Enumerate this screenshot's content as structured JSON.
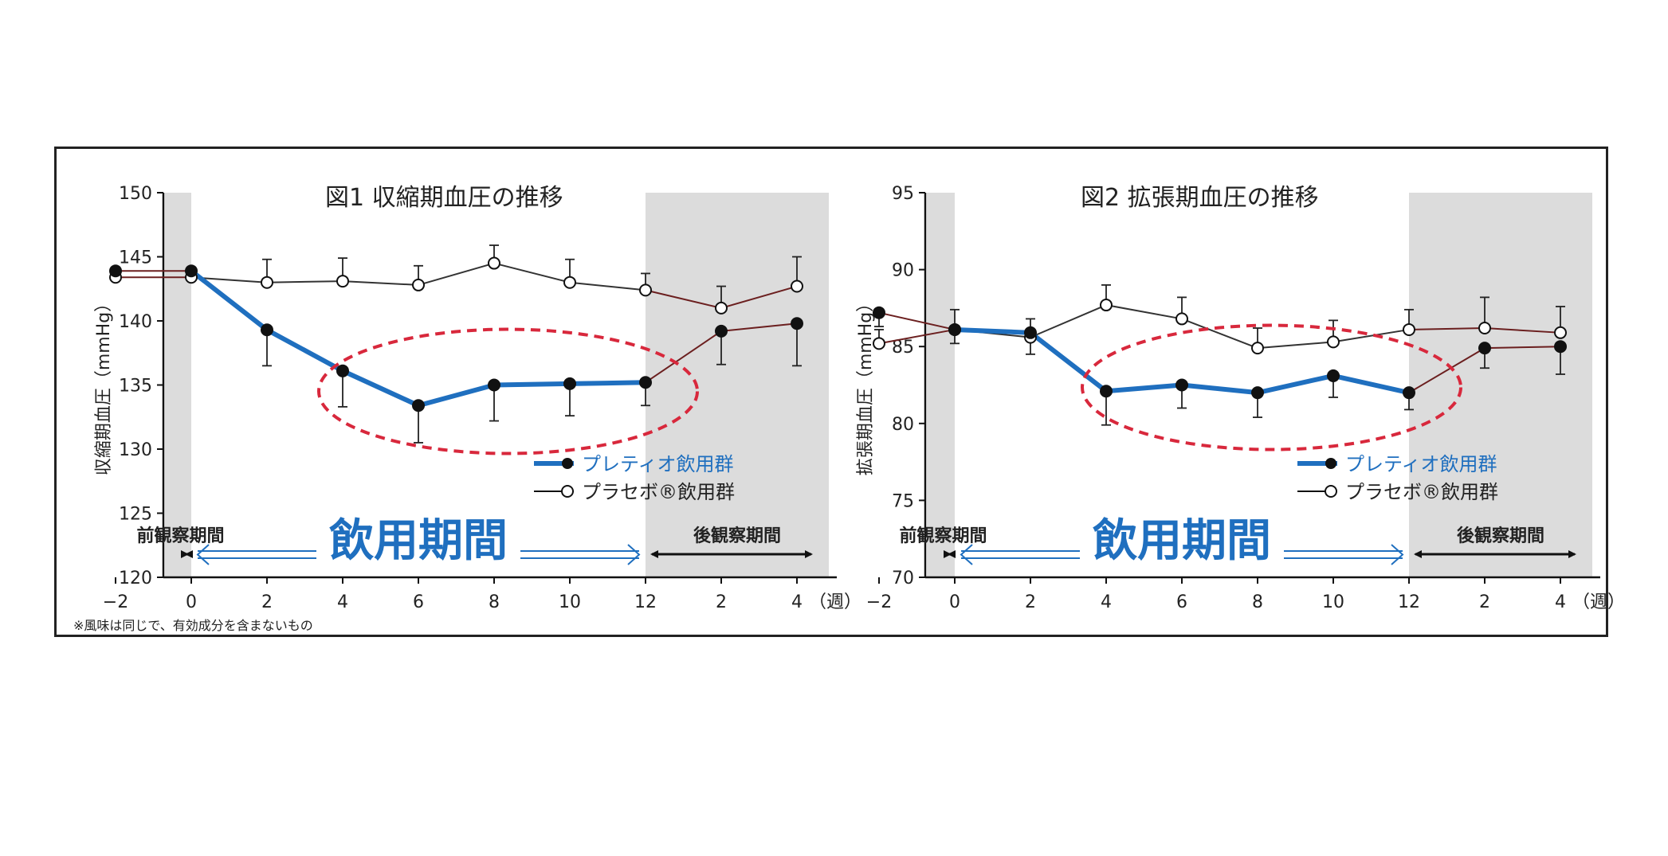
{
  "note": "※風味は同じで、有効成分を含まないもの",
  "colors": {
    "active": "#1f6fbf",
    "placebo": "#333333",
    "post": "#6b1f1f",
    "shade": "#dcdcdc",
    "ellipse": "#d8283c"
  },
  "period_labels": {
    "pre": "前観察期間",
    "during": "飲用期間",
    "post": "後観察期間"
  },
  "x_unit": "（週）",
  "chart_data": [
    {
      "type": "line",
      "title": "図1 収縮期血圧の推移",
      "ylabel": "収縮期血圧（mmHg）",
      "ylim": [
        120,
        150
      ],
      "yticks": [
        120,
        125,
        130,
        135,
        140,
        145,
        150
      ],
      "xtick_labels": [
        "−2",
        "0",
        "2",
        "4",
        "6",
        "8",
        "10",
        "12",
        "2",
        "4"
      ],
      "series": [
        {
          "name": "プレティオ飲用群",
          "marker": "filled",
          "values": [
            143.9,
            143.9,
            139.3,
            136.1,
            133.4,
            135.0,
            135.1,
            135.2,
            139.2,
            139.8
          ],
          "errors": [
            0.6,
            0.6,
            2.8,
            2.8,
            2.9,
            2.8,
            2.5,
            1.8,
            2.6,
            3.3
          ]
        },
        {
          "name": "プラセボ®飲用群",
          "marker": "open",
          "values": [
            143.4,
            143.4,
            143.0,
            143.1,
            142.8,
            144.5,
            143.0,
            142.4,
            141.0,
            142.7
          ],
          "errors": [
            0.6,
            0.6,
            1.8,
            1.8,
            1.5,
            1.4,
            1.8,
            1.3,
            1.7,
            2.3
          ]
        }
      ]
    },
    {
      "type": "line",
      "title": "図2 拡張期血圧の推移",
      "ylabel": "拡張期血圧（mmHg）",
      "ylim": [
        70,
        95
      ],
      "yticks": [
        70,
        75,
        80,
        85,
        90,
        95
      ],
      "xtick_labels": [
        "−2",
        "0",
        "2",
        "4",
        "6",
        "8",
        "10",
        "12",
        "2",
        "4"
      ],
      "series": [
        {
          "name": "プレティオ飲用群",
          "marker": "filled",
          "values": [
            87.2,
            86.1,
            85.9,
            82.1,
            82.5,
            82.0,
            83.1,
            82.0,
            84.9,
            85.0
          ],
          "errors": [
            0.9,
            0.9,
            1.4,
            2.2,
            1.5,
            1.6,
            1.4,
            1.1,
            1.3,
            1.8
          ]
        },
        {
          "name": "プラセボ®飲用群",
          "marker": "open",
          "values": [
            85.2,
            86.1,
            85.6,
            87.7,
            86.8,
            84.9,
            85.3,
            86.1,
            86.2,
            85.9
          ],
          "errors": [
            0.9,
            1.3,
            1.2,
            1.3,
            1.4,
            1.3,
            1.4,
            1.3,
            2.0,
            1.7
          ]
        }
      ]
    }
  ]
}
